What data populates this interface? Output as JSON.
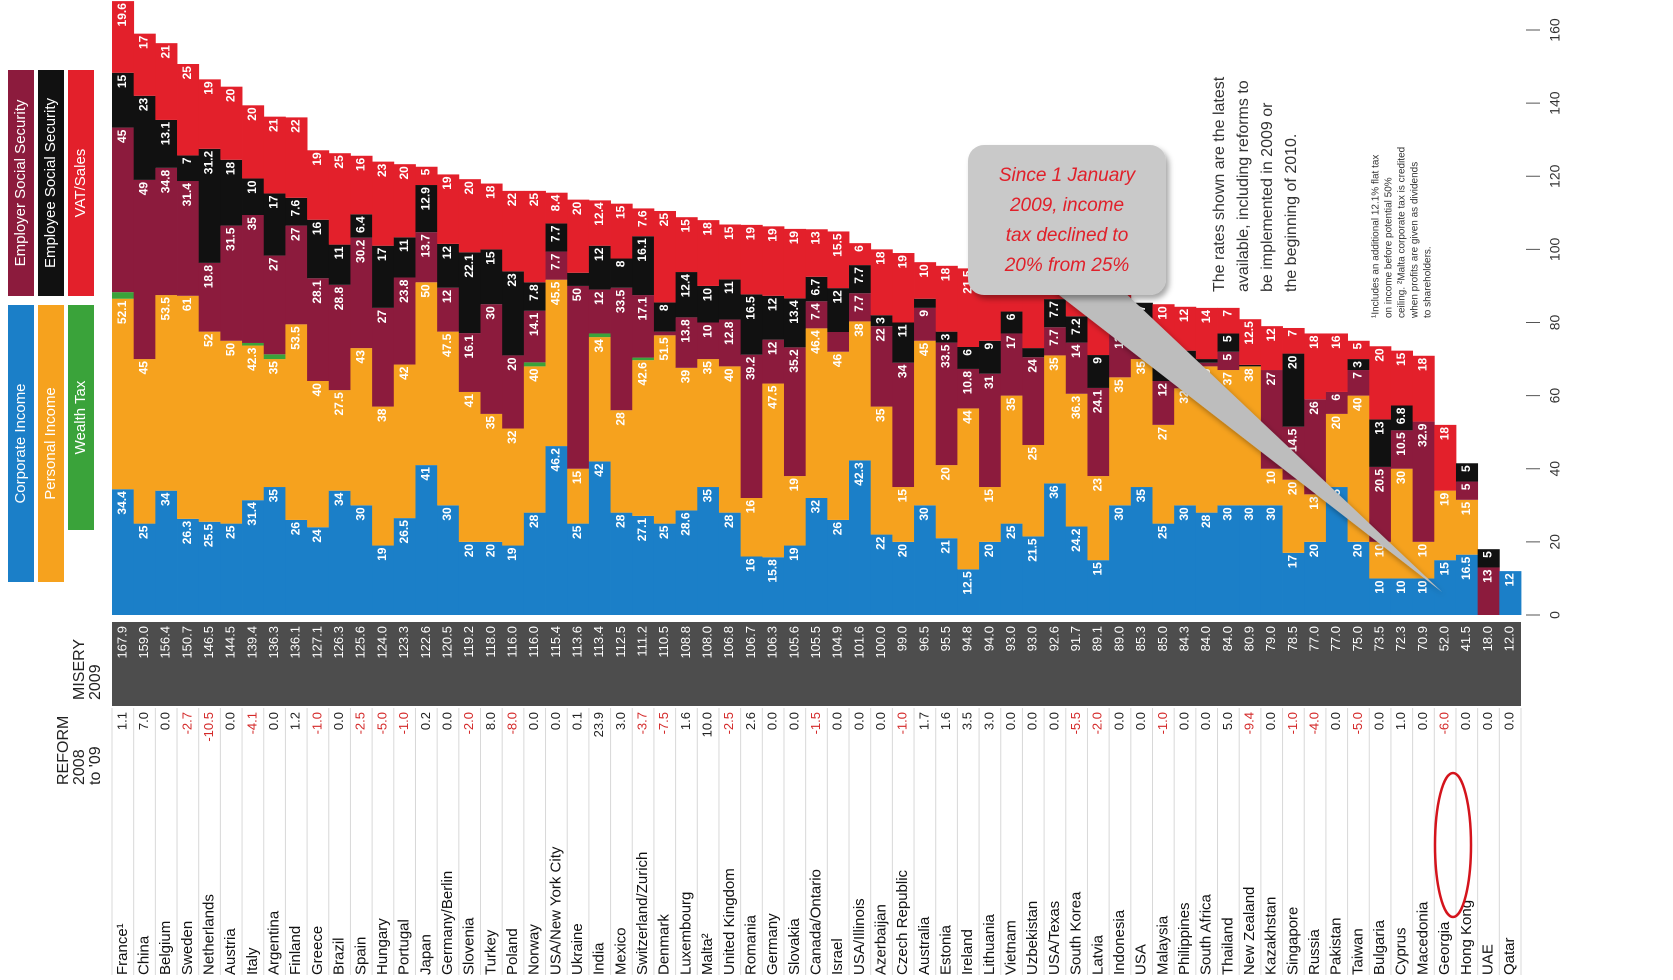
{
  "chart_data": {
    "type": "bar",
    "stacked": true,
    "categories": [
      "France¹",
      "China",
      "Belgium",
      "Sweden",
      "Netherlands",
      "Austria",
      "Italy",
      "Argentina",
      "Finland",
      "Greece",
      "Brazil",
      "Spain",
      "Hungary",
      "Portugal",
      "Japan",
      "Germany/Berlin",
      "Slovenia",
      "Turkey",
      "Poland",
      "Norway",
      "USA/New York City",
      "Ukraine",
      "India",
      "Mexico",
      "Switzerland/Zurich",
      "Denmark",
      "Luxembourg",
      "Malta²",
      "United Kingdom",
      "Romania",
      "Germany",
      "Slovakia",
      "Canada/Ontario",
      "Israel",
      "USA/Illinois",
      "Azerbaijan",
      "Czech Republic",
      "Australia",
      "Estonia",
      "Ireland",
      "Lithuania",
      "Vietnam",
      "Uzbekistan",
      "USA/Texas",
      "South Korea",
      "Latvia",
      "Indonesia",
      "USA",
      "Malaysia",
      "Philippines",
      "South Africa",
      "Thailand",
      "New Zealand",
      "Kazakhstan",
      "Singapore",
      "Russia",
      "Pakistan",
      "Taiwan",
      "Bulgaria",
      "Cyprus",
      "Macedonia",
      "Georgia",
      "Hong Kong",
      "UAE",
      "Qatar"
    ],
    "series": [
      {
        "name": "Corporate Income",
        "color": "#1b7fc8",
        "values": [
          34.4,
          25,
          34,
          26.3,
          25.5,
          25,
          31.4,
          35,
          26,
          24,
          34,
          30,
          19,
          26.5,
          41,
          30,
          20,
          20,
          19,
          28,
          46.2,
          25,
          42,
          28,
          27.1,
          25,
          28.6,
          35,
          28,
          16,
          15.8,
          19,
          32,
          26,
          42.3,
          22,
          20,
          30,
          21,
          12.5,
          20,
          25,
          21.5,
          36,
          24.2,
          15,
          30,
          35,
          25,
          30,
          28,
          30,
          30,
          30,
          17,
          20,
          35,
          20,
          10,
          10,
          10,
          15,
          16.5,
          0,
          12
        ]
      },
      {
        "name": "Personal Income",
        "color": "#f6a21e",
        "values": [
          52.1,
          45,
          53.5,
          61,
          52,
          50,
          42.3,
          35,
          53.5,
          40,
          27.5,
          43,
          38,
          42,
          50,
          47.5,
          41,
          35,
          32,
          40,
          45.5,
          15,
          34,
          28,
          42.6,
          51.5,
          39,
          35,
          40,
          16,
          47.5,
          19,
          46.4,
          46,
          38,
          35,
          15,
          45,
          20,
          44,
          15,
          35,
          25,
          35,
          36.3,
          23,
          35,
          35,
          27,
          32,
          40,
          37,
          38,
          10,
          20,
          13,
          20,
          40,
          10,
          30,
          10,
          19,
          15,
          0,
          0
        ]
      },
      {
        "name": "Wealth Tax",
        "color": "#3aa33a",
        "values": [
          1.8,
          0,
          0,
          0,
          0,
          0,
          0.7,
          1.3,
          0,
          0,
          0,
          0,
          0,
          0,
          0,
          0,
          0,
          0,
          0,
          1.1,
          0,
          0,
          1,
          0,
          0.7,
          0,
          0,
          0,
          0,
          0,
          0,
          0,
          0,
          0,
          0,
          0,
          0,
          0,
          0,
          0,
          0,
          0,
          0,
          0,
          0,
          0,
          0,
          0,
          0,
          0,
          0,
          0,
          0,
          0,
          0,
          0,
          0,
          0,
          0,
          0,
          0,
          0,
          0,
          0,
          0
        ]
      },
      {
        "name": "Employer Social Security",
        "color": "#8c1b3d",
        "values": [
          45,
          49,
          34.8,
          31.4,
          18.8,
          31.5,
          35,
          27,
          27,
          28.1,
          28.8,
          30.2,
          27,
          23.8,
          13.7,
          12,
          16.1,
          30,
          20,
          14.1,
          7.7,
          50,
          12,
          33.5,
          17.1,
          1,
          13.8,
          10,
          12.8,
          39.2,
          12,
          35.2,
          7.4,
          5.4,
          7.7,
          22,
          34,
          9,
          33.5,
          10.8,
          31,
          17,
          24,
          7.7,
          14,
          24.1,
          12,
          7.7,
          12,
          7,
          1,
          5,
          0,
          27,
          14.5,
          26,
          6,
          7,
          20.5,
          10.5,
          32.9,
          0,
          5,
          13,
          0
        ]
      },
      {
        "name": "Employee Social Security",
        "color": "#111111",
        "values": [
          15,
          23,
          13.1,
          7,
          31.2,
          18,
          10,
          17,
          7.6,
          16,
          11,
          6.4,
          17,
          11,
          12.9,
          12,
          22.1,
          15,
          23,
          7.8,
          7.7,
          3.6,
          12,
          8,
          16.1,
          8,
          12.4,
          10,
          11,
          16.5,
          12,
          13.4,
          6.7,
          12,
          7.7,
          3,
          11,
          2.5,
          3,
          6,
          9,
          6,
          2.5,
          7.7,
          7.2,
          9,
          2,
          7.7,
          11,
          3.3,
          1,
          5,
          0.4,
          0,
          20,
          0,
          0,
          3,
          13,
          6.8,
          0,
          0,
          5,
          5,
          0
        ]
      },
      {
        "name": "VAT/Sales",
        "color": "#e3202b",
        "values": [
          19.6,
          17,
          21,
          25,
          19,
          20,
          20,
          21,
          22,
          19,
          25,
          16,
          23,
          20,
          5,
          19,
          20,
          18,
          22,
          25,
          8.4,
          20,
          12.4,
          15,
          7.6,
          25,
          15,
          18,
          15,
          19,
          19,
          19,
          13,
          15.5,
          6,
          18,
          19,
          10,
          18,
          21.5,
          19,
          10,
          20,
          6.2,
          10,
          18,
          10,
          0,
          10,
          12,
          14,
          7,
          12.5,
          12,
          7,
          18,
          16,
          5,
          20,
          15,
          18,
          18,
          0,
          0,
          0
        ]
      }
    ],
    "ylim": [
      0,
      160
    ],
    "yticks": [
      0,
      20,
      40,
      60,
      80,
      100,
      120,
      140,
      160
    ],
    "reform_header": [
      "REFORM",
      "2008",
      "to '09"
    ],
    "misery_header": [
      "MISERY",
      "2009"
    ],
    "reform": [
      "1.1",
      "7.0",
      "0.0",
      "-2.7",
      "-10.5",
      "0.0",
      "-4.1",
      "0.0",
      "1.2",
      "-1.0",
      "0.0",
      "-2.5",
      "-5.0",
      "-1.0",
      "0.2",
      "0.0",
      "-2.0",
      "8.0",
      "-8.0",
      "0.0",
      "0.0",
      "0.1",
      "23.9",
      "3.0",
      "-3.7",
      "-7.5",
      "1.6",
      "10.0",
      "-2.5",
      "2.6",
      "0.0",
      "0.0",
      "-1.5",
      "0.0",
      "0.0",
      "0.0",
      "-1.0",
      "1.7",
      "1.6",
      "3.5",
      "3.0",
      "0.0",
      "0.0",
      "0.0",
      "-5.5",
      "-2.0",
      "0.0",
      "0.0",
      "-1.0",
      "0.0",
      "0.0",
      "5.0",
      "-9.4",
      "0.0",
      "-1.0",
      "-4.0",
      "0.0",
      "-5.0",
      "0.0",
      "1.0",
      "0.0",
      "-6.0",
      "0.0",
      "0.0",
      "0.0"
    ],
    "misery": [
      "167.9",
      "159.0",
      "156.4",
      "150.7",
      "146.5",
      "144.5",
      "139.4",
      "136.3",
      "136.1",
      "127.1",
      "126.3",
      "125.6",
      "124.0",
      "123.3",
      "122.6",
      "120.5",
      "119.2",
      "118.0",
      "116.0",
      "116.0",
      "115.4",
      "113.6",
      "113.4",
      "112.5",
      "111.2",
      "110.5",
      "108.8",
      "108.0",
      "106.8",
      "106.7",
      "106.3",
      "105.6",
      "105.5",
      "104.9",
      "101.6",
      "100.0",
      "99.0",
      "96.5",
      "95.5",
      "94.8",
      "94.0",
      "93.0",
      "93.0",
      "92.6",
      "91.7",
      "89.1",
      "89.0",
      "85.3",
      "85.0",
      "84.3",
      "84.0",
      "84.0",
      "80.9",
      "79.0",
      "78.5",
      "77.0",
      "77.0",
      "75.0",
      "73.5",
      "72.3",
      "70.9",
      "52.0",
      "41.5",
      "18.0",
      "12.0"
    ],
    "note": [
      "The rates shown are the latest",
      "available, including reforms to",
      "be implemented in 2009 or",
      "the beginning of 2010."
    ],
    "footnote": [
      "¹Includes an additional 12.1% flat tax",
      "on income before potential 50%",
      "ceiling. ²Malta corporate tax is credited",
      "when profits are given as dividends",
      "to shareholders."
    ],
    "callout": [
      "Since 1 January",
      "2009, income",
      "tax declined to",
      "20% from 25%"
    ]
  }
}
